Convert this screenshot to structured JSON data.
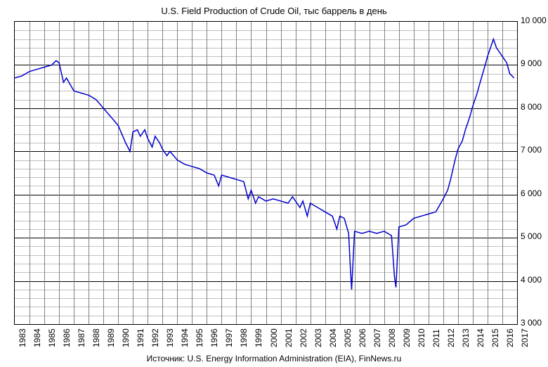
{
  "chart": {
    "type": "line",
    "title": "U.S. Field Production of Crude Oil, тыс баррель в день",
    "source": "Источник: U.S. Energy Information Administration (EIA), FinNews.ru",
    "background_color": "#ffffff",
    "line_color": "#0000cc",
    "line_width": 1.5,
    "grid_major_color": "#000000",
    "grid_minor_color": "#c0c0c0",
    "grid_vertical_color": "#808080",
    "title_fontsize": 13,
    "label_fontsize": 12,
    "x_axis": {
      "min": 1983,
      "max": 2017,
      "ticks": [
        1983,
        1984,
        1985,
        1986,
        1987,
        1988,
        1989,
        1990,
        1991,
        1992,
        1993,
        1994,
        1995,
        1996,
        1997,
        1998,
        1999,
        2000,
        2001,
        2002,
        2003,
        2004,
        2005,
        2006,
        2007,
        2008,
        2009,
        2010,
        2011,
        2012,
        2013,
        2014,
        2015,
        2016,
        2017
      ]
    },
    "y_axis": {
      "min": 3000,
      "max": 10000,
      "major_ticks": [
        3000,
        4000,
        5000,
        6000,
        7000,
        8000,
        9000,
        10000
      ],
      "tick_labels": [
        "3 000",
        "4 000",
        "5 000",
        "6 000",
        "7 000",
        "8 000",
        "9 000",
        "10 000"
      ],
      "minor_step": 200
    },
    "series": [
      {
        "x": 1983.0,
        "y": 8700
      },
      {
        "x": 1983.5,
        "y": 8750
      },
      {
        "x": 1984.0,
        "y": 8850
      },
      {
        "x": 1984.5,
        "y": 8900
      },
      {
        "x": 1985.0,
        "y": 8950
      },
      {
        "x": 1985.5,
        "y": 9000
      },
      {
        "x": 1985.8,
        "y": 9100
      },
      {
        "x": 1986.0,
        "y": 9050
      },
      {
        "x": 1986.3,
        "y": 8600
      },
      {
        "x": 1986.5,
        "y": 8700
      },
      {
        "x": 1987.0,
        "y": 8400
      },
      {
        "x": 1987.5,
        "y": 8350
      },
      {
        "x": 1988.0,
        "y": 8300
      },
      {
        "x": 1988.5,
        "y": 8200
      },
      {
        "x": 1989.0,
        "y": 8000
      },
      {
        "x": 1989.5,
        "y": 7800
      },
      {
        "x": 1990.0,
        "y": 7600
      },
      {
        "x": 1990.5,
        "y": 7200
      },
      {
        "x": 1990.8,
        "y": 7000
      },
      {
        "x": 1991.0,
        "y": 7450
      },
      {
        "x": 1991.3,
        "y": 7500
      },
      {
        "x": 1991.5,
        "y": 7350
      },
      {
        "x": 1991.8,
        "y": 7500
      },
      {
        "x": 1992.0,
        "y": 7300
      },
      {
        "x": 1992.3,
        "y": 7100
      },
      {
        "x": 1992.5,
        "y": 7350
      },
      {
        "x": 1992.8,
        "y": 7200
      },
      {
        "x": 1993.0,
        "y": 7050
      },
      {
        "x": 1993.3,
        "y": 6900
      },
      {
        "x": 1993.5,
        "y": 7000
      },
      {
        "x": 1994.0,
        "y": 6800
      },
      {
        "x": 1994.5,
        "y": 6700
      },
      {
        "x": 1995.0,
        "y": 6650
      },
      {
        "x": 1995.5,
        "y": 6600
      },
      {
        "x": 1996.0,
        "y": 6500
      },
      {
        "x": 1996.5,
        "y": 6450
      },
      {
        "x": 1996.8,
        "y": 6200
      },
      {
        "x": 1997.0,
        "y": 6450
      },
      {
        "x": 1997.5,
        "y": 6400
      },
      {
        "x": 1998.0,
        "y": 6350
      },
      {
        "x": 1998.5,
        "y": 6300
      },
      {
        "x": 1998.8,
        "y": 5900
      },
      {
        "x": 1999.0,
        "y": 6100
      },
      {
        "x": 1999.3,
        "y": 5800
      },
      {
        "x": 1999.5,
        "y": 5950
      },
      {
        "x": 2000.0,
        "y": 5850
      },
      {
        "x": 2000.5,
        "y": 5900
      },
      {
        "x": 2001.0,
        "y": 5850
      },
      {
        "x": 2001.5,
        "y": 5800
      },
      {
        "x": 2001.8,
        "y": 5950
      },
      {
        "x": 2002.0,
        "y": 5850
      },
      {
        "x": 2002.3,
        "y": 5700
      },
      {
        "x": 2002.5,
        "y": 5850
      },
      {
        "x": 2002.8,
        "y": 5500
      },
      {
        "x": 2003.0,
        "y": 5800
      },
      {
        "x": 2003.5,
        "y": 5700
      },
      {
        "x": 2004.0,
        "y": 5600
      },
      {
        "x": 2004.5,
        "y": 5500
      },
      {
        "x": 2004.8,
        "y": 5200
      },
      {
        "x": 2005.0,
        "y": 5500
      },
      {
        "x": 2005.3,
        "y": 5450
      },
      {
        "x": 2005.6,
        "y": 5100
      },
      {
        "x": 2005.7,
        "y": 4400
      },
      {
        "x": 2005.8,
        "y": 3800
      },
      {
        "x": 2006.0,
        "y": 5150
      },
      {
        "x": 2006.5,
        "y": 5100
      },
      {
        "x": 2007.0,
        "y": 5150
      },
      {
        "x": 2007.5,
        "y": 5100
      },
      {
        "x": 2008.0,
        "y": 5150
      },
      {
        "x": 2008.5,
        "y": 5050
      },
      {
        "x": 2008.7,
        "y": 4100
      },
      {
        "x": 2008.8,
        "y": 3850
      },
      {
        "x": 2009.0,
        "y": 5250
      },
      {
        "x": 2009.5,
        "y": 5300
      },
      {
        "x": 2010.0,
        "y": 5450
      },
      {
        "x": 2010.5,
        "y": 5500
      },
      {
        "x": 2011.0,
        "y": 5550
      },
      {
        "x": 2011.5,
        "y": 5600
      },
      {
        "x": 2012.0,
        "y": 5900
      },
      {
        "x": 2012.3,
        "y": 6100
      },
      {
        "x": 2012.5,
        "y": 6350
      },
      {
        "x": 2012.8,
        "y": 6800
      },
      {
        "x": 2013.0,
        "y": 7050
      },
      {
        "x": 2013.3,
        "y": 7250
      },
      {
        "x": 2013.5,
        "y": 7500
      },
      {
        "x": 2013.8,
        "y": 7800
      },
      {
        "x": 2014.0,
        "y": 8050
      },
      {
        "x": 2014.3,
        "y": 8350
      },
      {
        "x": 2014.5,
        "y": 8600
      },
      {
        "x": 2014.8,
        "y": 8950
      },
      {
        "x": 2015.0,
        "y": 9200
      },
      {
        "x": 2015.2,
        "y": 9400
      },
      {
        "x": 2015.4,
        "y": 9600
      },
      {
        "x": 2015.6,
        "y": 9400
      },
      {
        "x": 2015.8,
        "y": 9300
      },
      {
        "x": 2016.0,
        "y": 9200
      },
      {
        "x": 2016.3,
        "y": 9050
      },
      {
        "x": 2016.5,
        "y": 8800
      },
      {
        "x": 2016.8,
        "y": 8700
      }
    ]
  }
}
